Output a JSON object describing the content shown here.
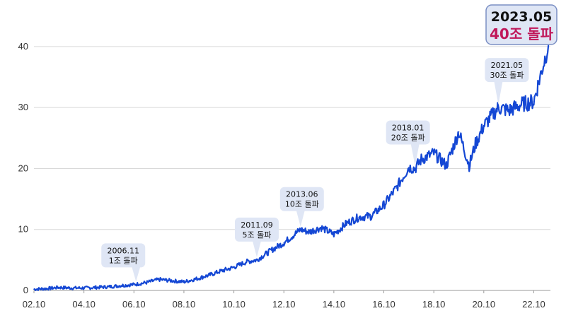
{
  "chart_data": {
    "type": "line",
    "series_color": "#1447d4",
    "highlight_color": "#c0185a",
    "xlim": [
      "2002-10",
      "2023-06"
    ],
    "ylim": [
      0,
      43
    ],
    "grid": true,
    "x_ticks": [
      "02.10",
      "04.10",
      "06.10",
      "08.10",
      "10.10",
      "12.10",
      "14.10",
      "16.10",
      "18.10",
      "20.10",
      "22.10"
    ],
    "y_ticks": [
      0,
      10,
      20,
      30,
      40
    ],
    "x": [
      "2002-10",
      "2003-04",
      "2003-10",
      "2004-04",
      "2004-10",
      "2005-04",
      "2005-10",
      "2006-04",
      "2006-11",
      "2007-04",
      "2007-10",
      "2008-04",
      "2008-10",
      "2009-04",
      "2009-10",
      "2010-04",
      "2010-10",
      "2011-04",
      "2011-09",
      "2012-04",
      "2012-10",
      "2013-06",
      "2013-10",
      "2014-04",
      "2014-10",
      "2015-04",
      "2015-10",
      "2016-04",
      "2016-10",
      "2017-04",
      "2017-10",
      "2018-01",
      "2018-04",
      "2018-10",
      "2019-04",
      "2019-10",
      "2020-03",
      "2020-06",
      "2020-10",
      "2021-05",
      "2021-10",
      "2022-04",
      "2022-10",
      "2023-01",
      "2023-05"
    ],
    "y": [
      0.2,
      0.3,
      0.5,
      0.4,
      0.4,
      0.5,
      0.6,
      0.8,
      1.0,
      1.3,
      1.8,
      1.6,
      1.4,
      1.9,
      2.5,
      3.2,
      3.8,
      4.7,
      5.0,
      6.6,
      7.8,
      10.0,
      9.6,
      10.3,
      9.2,
      11.0,
      12.0,
      12.2,
      14.0,
      16.8,
      20.2,
      20.0,
      21.5,
      22.5,
      20.5,
      26.0,
      20.5,
      24.0,
      27.0,
      30.0,
      29.5,
      30.5,
      31.0,
      35.0,
      40.2
    ],
    "annotations": [
      {
        "date": "2006.11",
        "label": "1조 돌파",
        "x": "2006-11",
        "y": 1.0
      },
      {
        "date": "2011.09",
        "label": "5조 돌파",
        "x": "2011-09",
        "y": 5.0
      },
      {
        "date": "2013.06",
        "label": "10조 돌파",
        "x": "2013-06",
        "y": 10.0
      },
      {
        "date": "2018.01",
        "label": "20조 돌파",
        "x": "2018-01",
        "y": 20.0
      },
      {
        "date": "2021.05",
        "label": "30조 돌파",
        "x": "2021-05",
        "y": 30.0
      }
    ],
    "highlight": {
      "date": "2023.05",
      "label": "40조 돌파",
      "x": "2023-05",
      "y": 40.2
    }
  }
}
